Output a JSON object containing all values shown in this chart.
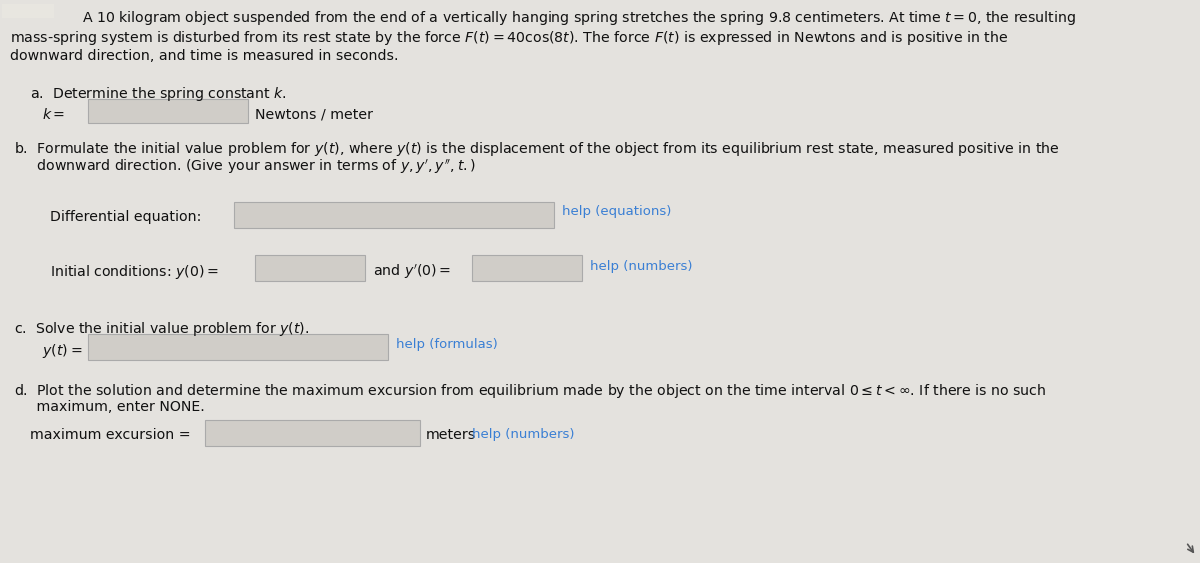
{
  "bg_color": "#c8c8c8",
  "panel_color": "#e4e2de",
  "input_box_color": "#d0cdc8",
  "help_link_color": "#3a7fd4",
  "text_color": "#111111",
  "font_size_body": 10.2,
  "font_size_small": 9.5,
  "intro_line1": "A 10 kilogram object suspended from the end of a vertically hanging spring stretches the spring 9.8 centimeters. At time $t = 0$, the resulting",
  "intro_line2": "mass-spring system is disturbed from its rest state by the force $F(t) = 40\\cos(8t)$. The force $F(t)$ is expressed in Newtons and is positive in the",
  "intro_line3": "downward direction, and time is measured in seconds.",
  "a_header": "a.  Determine the spring constant $k$.",
  "a_k_eq": "$k =$",
  "a_unit": "Newtons / meter",
  "b_header1": "b.  Formulate the initial value problem for $y(t)$, where $y(t)$ is the displacement of the object from its equilibrium rest state, measured positive in the",
  "b_header2": "     downward direction. (Give your answer in terms of $y, y', y'', t.$)",
  "b_diff_eq": "Differential equation:",
  "b_help_eq": "help (equations)",
  "b_ic": "Initial conditions: $y(0) =$",
  "b_and": "and $y'(0) =$",
  "b_help_num": "help (numbers)",
  "c_header": "c.  Solve the initial value problem for $y(t)$.",
  "c_yt": "$y(t) =$",
  "c_help": "help (formulas)",
  "d_header1": "d.  Plot the solution and determine the maximum excursion from equilibrium made by the object on the time interval $0 \\leq t < \\infty$. If there is no such",
  "d_header2": "     maximum, enter NONE.",
  "d_max": "maximum excursion =",
  "d_meters": "meters",
  "d_help": "help (numbers)"
}
